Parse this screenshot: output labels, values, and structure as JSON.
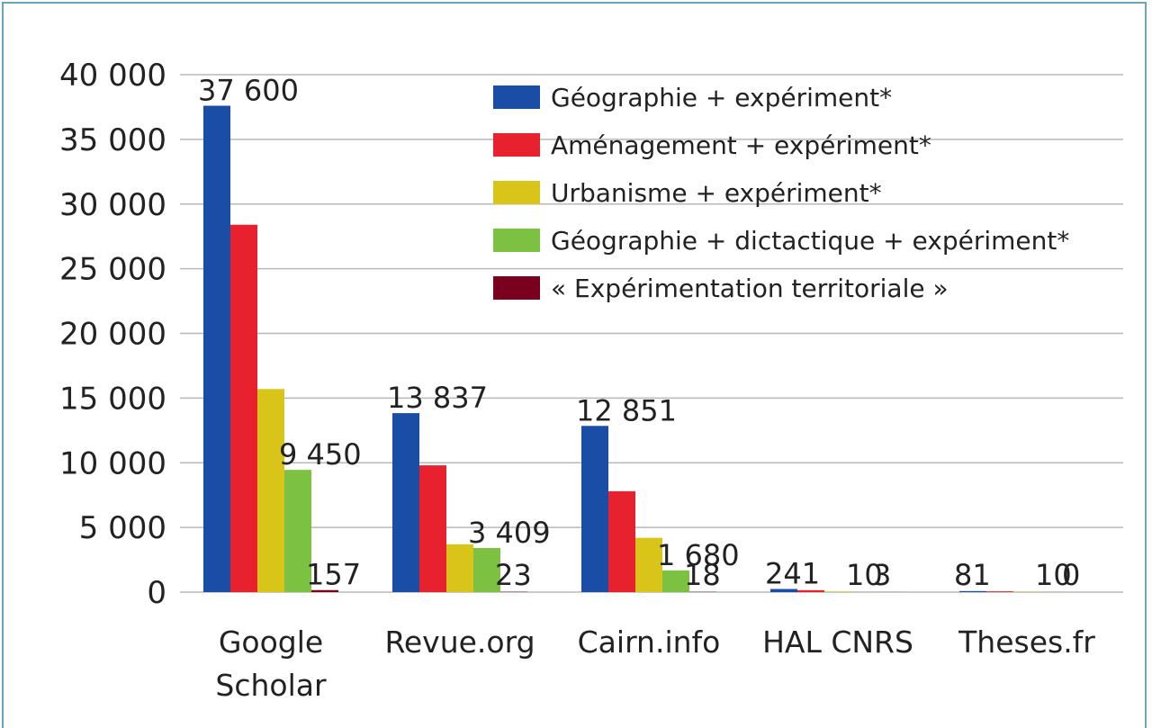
{
  "chart_data": {
    "type": "bar",
    "categories": [
      "Google Scholar",
      "Revue.org",
      "Cairn.info",
      "HAL CNRS",
      "Theses.fr"
    ],
    "series": [
      {
        "name": "Géographie + expériment*",
        "color": "#1a4ea6",
        "values": [
          37600,
          13837,
          12851,
          241,
          81
        ],
        "value_labels": [
          "37 600",
          "13 837",
          "12 851",
          "241",
          "81"
        ]
      },
      {
        "name": "Aménagement + expériment*",
        "color": "#e8212e",
        "values": [
          28400,
          9800,
          7800,
          150,
          60
        ],
        "value_labels": [
          null,
          null,
          null,
          null,
          null
        ]
      },
      {
        "name": "Urbanisme + expériment*",
        "color": "#d9c41a",
        "values": [
          15700,
          3700,
          4200,
          40,
          20
        ],
        "value_labels": [
          null,
          null,
          null,
          null,
          null
        ]
      },
      {
        "name": "Géographie + dictactique + expériment*",
        "color": "#7dc142",
        "values": [
          9450,
          3409,
          1680,
          10,
          10
        ],
        "value_labels": [
          "9 450",
          "3 409",
          "1 680",
          "10",
          "10"
        ]
      },
      {
        "name": "« Expérimentation territoriale »",
        "color": "#7a0020",
        "values": [
          157,
          23,
          18,
          3,
          0
        ],
        "value_labels": [
          "157",
          "23",
          "18",
          "3",
          "0"
        ]
      }
    ],
    "ylim": [
      0,
      40000
    ],
    "yticks": [
      0,
      {
        "value": 5000,
        "label": "5 000"
      },
      {
        "value": 10000,
        "label": "10 000"
      },
      {
        "value": 15000,
        "label": "15 000"
      },
      {
        "value": 20000,
        "label": "20 000"
      },
      {
        "value": 25000,
        "label": "25 000"
      },
      {
        "value": 30000,
        "label": "30 000"
      },
      {
        "value": 35000,
        "label": "35 000"
      },
      {
        "value": 40000,
        "label": "40 000"
      }
    ],
    "grid": true,
    "legend": "top-right"
  }
}
